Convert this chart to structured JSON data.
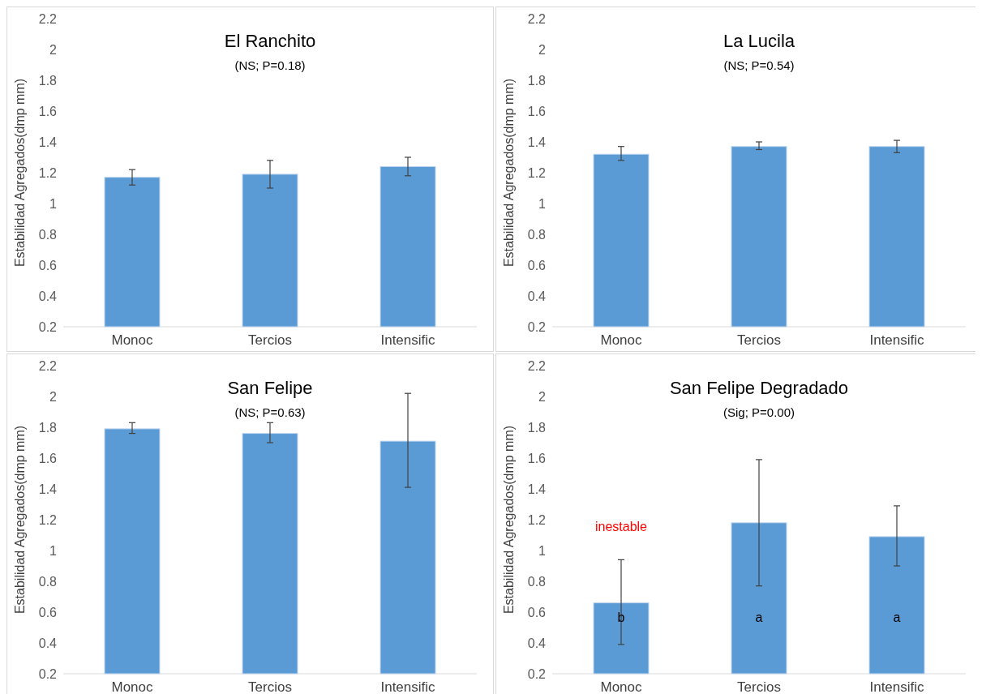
{
  "chart_data": [
    {
      "type": "bar",
      "title": "El Ranchito",
      "subtitle": "(NS; P=0.18)",
      "ylabel": "Estabilidad Agregados(dmp mm)",
      "categories": [
        "Monoc",
        "Tercios",
        "Intensific"
      ],
      "values": [
        1.17,
        1.19,
        1.24
      ],
      "errors": [
        [
          1.12,
          1.22
        ],
        [
          1.1,
          1.28
        ],
        [
          1.18,
          1.3
        ]
      ],
      "color": "#5b9bd5",
      "ylim": [
        0.2,
        2.2
      ],
      "yticks": [
        0.2,
        0.4,
        0.6,
        0.8,
        1,
        1.2,
        1.4,
        1.6,
        1.8,
        2,
        2.2
      ]
    },
    {
      "type": "bar",
      "title": "La Lucila",
      "subtitle": "(NS; P=0.54)",
      "ylabel": "Estabilidad Agregados(dmp mm)",
      "categories": [
        "Monoc",
        "Tercios",
        "Intensific"
      ],
      "values": [
        1.32,
        1.37,
        1.37
      ],
      "errors": [
        [
          1.28,
          1.37
        ],
        [
          1.35,
          1.4
        ],
        [
          1.33,
          1.41
        ]
      ],
      "color": "#5b9bd5",
      "ylim": [
        0.2,
        2.2
      ],
      "yticks": [
        0.2,
        0.4,
        0.6,
        0.8,
        1,
        1.2,
        1.4,
        1.6,
        1.8,
        2,
        2.2
      ]
    },
    {
      "type": "bar",
      "title": "San Felipe",
      "subtitle": "(NS; P=0.63)",
      "ylabel": "Estabilidad Agregados(dmp mm)",
      "categories": [
        "Monoc",
        "Tercios",
        "Intensific"
      ],
      "values": [
        1.79,
        1.76,
        1.71
      ],
      "errors": [
        [
          1.76,
          1.83
        ],
        [
          1.7,
          1.83
        ],
        [
          1.41,
          2.02
        ]
      ],
      "color": "#5b9bd5",
      "ylim": [
        0.2,
        2.2
      ],
      "yticks": [
        0.2,
        0.4,
        0.6,
        0.8,
        1,
        1.2,
        1.4,
        1.6,
        1.8,
        2,
        2.2
      ]
    },
    {
      "type": "bar",
      "title": "San Felipe Degradado",
      "subtitle": "(Sig; P=0.00)",
      "ylabel": "Estabilidad Agregados(dmp mm)",
      "categories": [
        "Monoc",
        "Tercios",
        "Intensific"
      ],
      "values": [
        0.66,
        1.18,
        1.09
      ],
      "errors": [
        [
          0.39,
          0.94
        ],
        [
          0.77,
          1.59
        ],
        [
          0.9,
          1.29
        ]
      ],
      "color": "#5b9bd5",
      "ylim": [
        0.2,
        2.2
      ],
      "yticks": [
        0.2,
        0.4,
        0.6,
        0.8,
        1,
        1.2,
        1.4,
        1.6,
        1.8,
        2,
        2.2
      ],
      "annotations": [
        "inestable",
        "b",
        "a",
        "a"
      ]
    }
  ]
}
